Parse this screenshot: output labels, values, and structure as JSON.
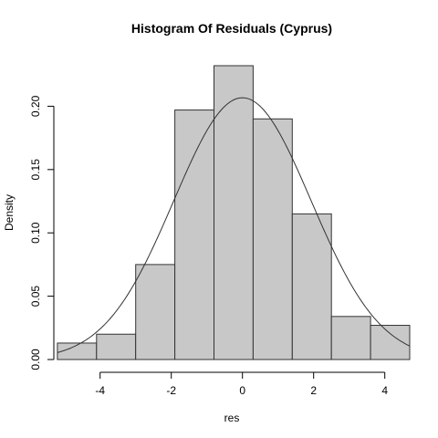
{
  "chart_data": {
    "type": "bar",
    "title": "Histogram Of Residuals (Cyprus)",
    "xlabel": "res",
    "ylabel": "Density",
    "xlim": [
      -5.3,
      4.7
    ],
    "ylim": [
      0,
      0.232
    ],
    "x_ticks": [
      -4,
      -2,
      0,
      2,
      4
    ],
    "x_tick_labels": [
      "-4",
      "-2",
      "0",
      "2",
      "4"
    ],
    "y_ticks": [
      0.0,
      0.05,
      0.1,
      0.15,
      0.2
    ],
    "y_tick_labels": [
      "0.00",
      "0.05",
      "0.10",
      "0.15",
      "0.20"
    ],
    "bins": [
      {
        "start": -5.2,
        "end": -4.1,
        "density": 0.013
      },
      {
        "start": -4.1,
        "end": -3.0,
        "density": 0.02
      },
      {
        "start": -3.0,
        "end": -1.9,
        "density": 0.075
      },
      {
        "start": -1.9,
        "end": -0.8,
        "density": 0.197
      },
      {
        "start": -0.8,
        "end": 0.3,
        "density": 0.232
      },
      {
        "start": 0.3,
        "end": 1.4,
        "density": 0.19
      },
      {
        "start": 1.4,
        "end": 2.5,
        "density": 0.115
      },
      {
        "start": 2.5,
        "end": 3.6,
        "density": 0.034
      },
      {
        "start": 3.6,
        "end": 4.7,
        "density": 0.027
      }
    ],
    "density_curve": {
      "type": "normal",
      "mean": 0.0,
      "sd": 1.93,
      "x_range": [
        -5.2,
        4.7
      ]
    },
    "grid": false,
    "legend": "none"
  }
}
